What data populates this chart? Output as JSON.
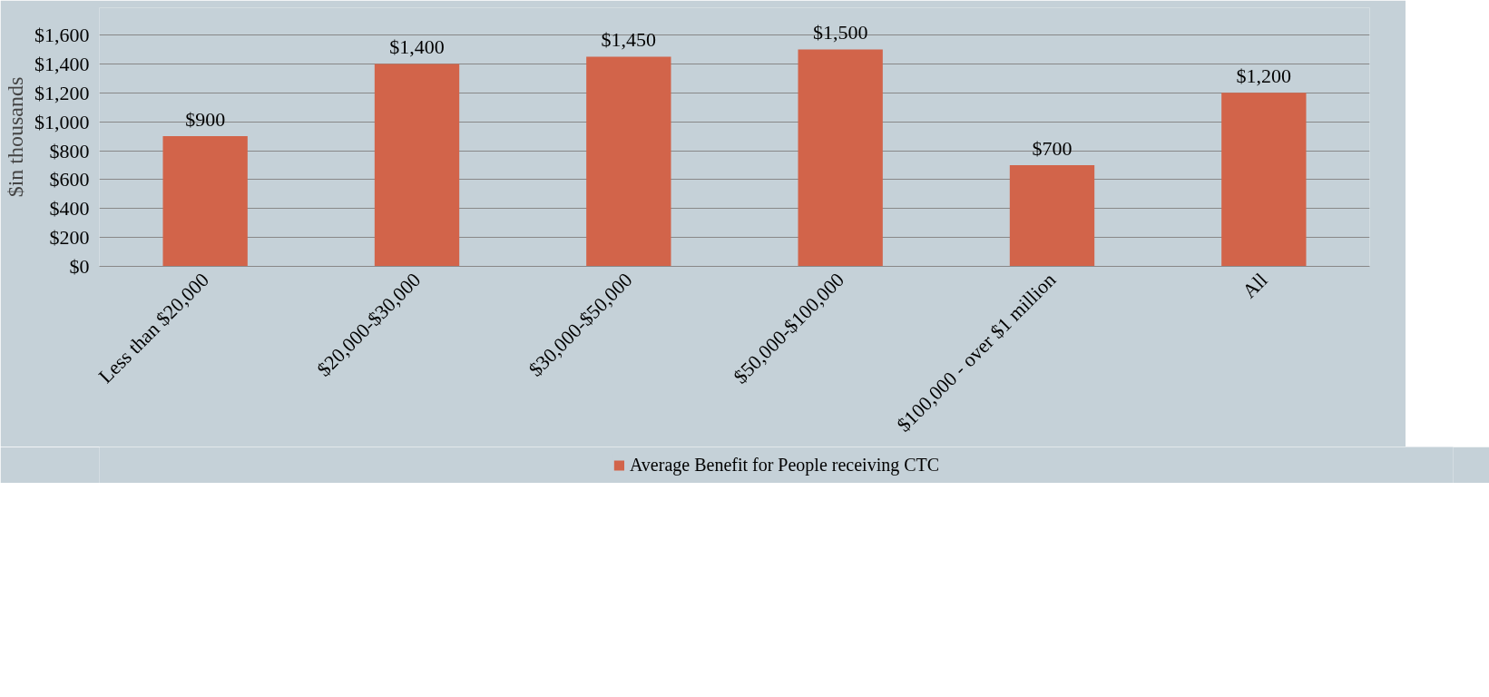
{
  "chart_data": {
    "type": "bar",
    "ylabel": "$in thousands",
    "categories": [
      "Less than $20,000",
      "$20,000-$30,000",
      "$30,000-$50,000",
      "$50,000-$100,000",
      "$100,000 - over $1 million",
      "All"
    ],
    "series": [
      {
        "name": "Average Benefit for People receiving CTC",
        "color": "#d2644a",
        "values": [
          900,
          1400,
          1450,
          1500,
          700,
          1200
        ],
        "value_labels": [
          "$900",
          "$1,400",
          "$1,450",
          "$1,500",
          "$700",
          "$1,200"
        ]
      }
    ],
    "ylim": [
      0,
      1600
    ],
    "yticks": [
      {
        "value": 0,
        "label": "$0"
      },
      {
        "value": 200,
        "label": "$200"
      },
      {
        "value": 400,
        "label": "$400"
      },
      {
        "value": 600,
        "label": "$600"
      },
      {
        "value": 800,
        "label": "$800"
      },
      {
        "value": 1000,
        "label": "$1,000"
      },
      {
        "value": 1200,
        "label": "$1,200"
      },
      {
        "value": 1400,
        "label": "$1,400"
      },
      {
        "value": 1600,
        "label": "$1,600"
      }
    ],
    "grid": "y",
    "legend": "bottom"
  }
}
